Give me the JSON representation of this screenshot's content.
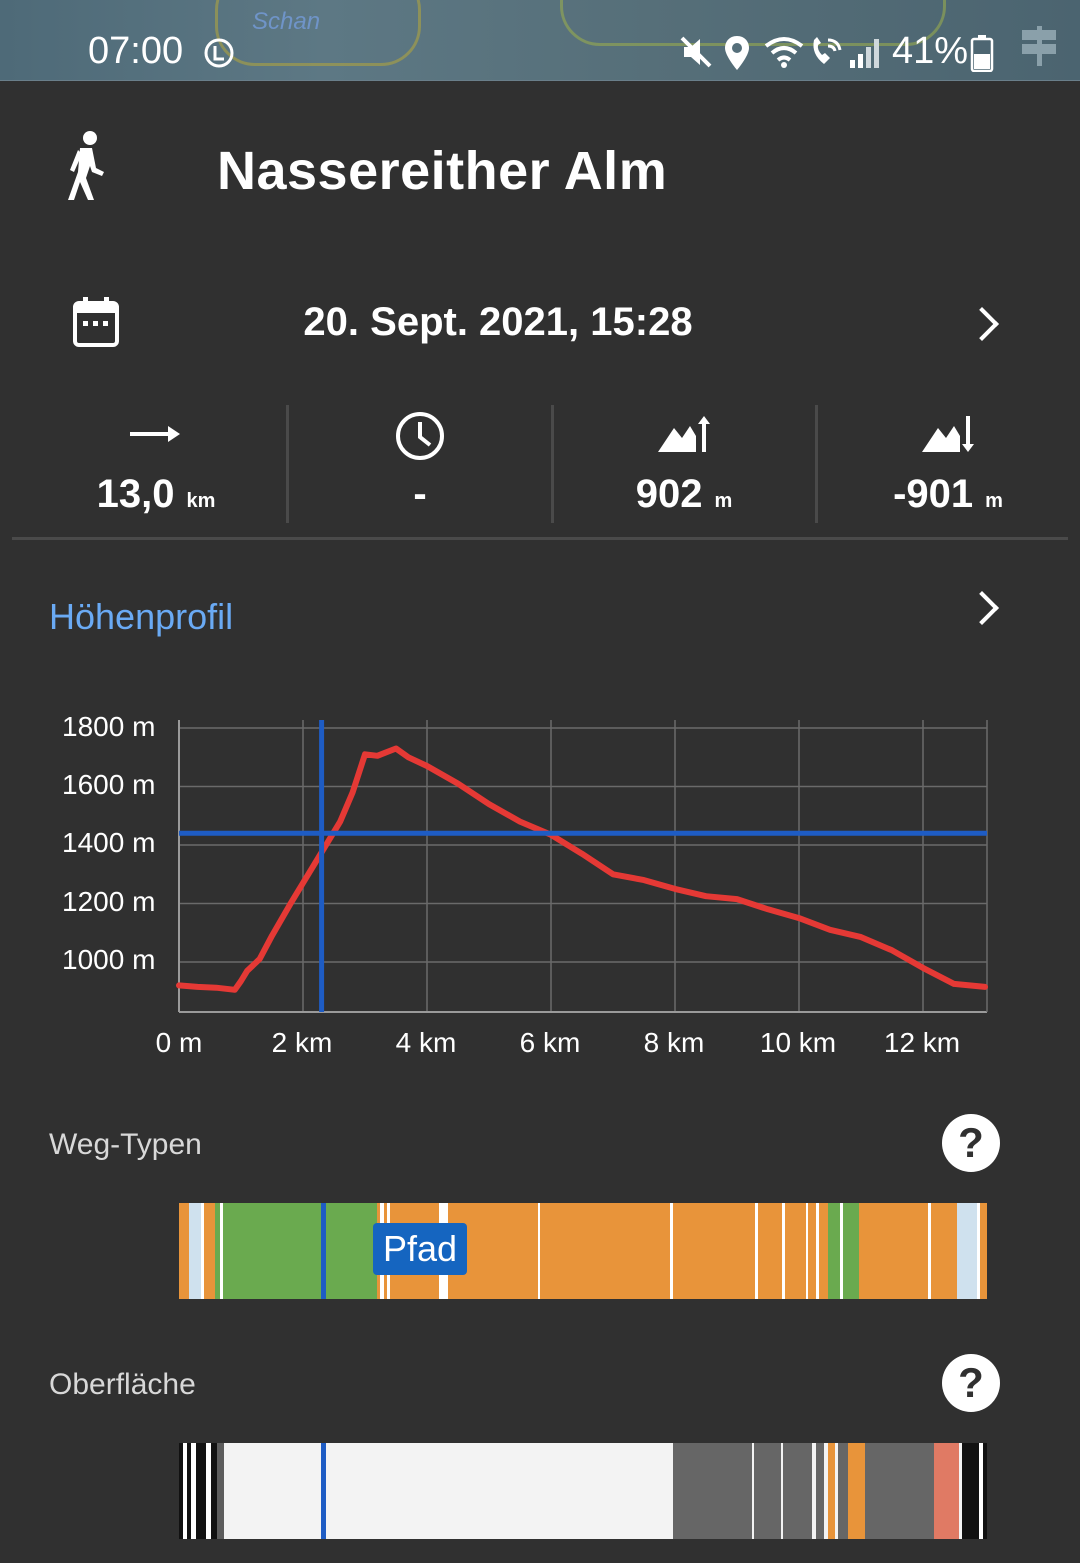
{
  "status_bar": {
    "time": "07:00",
    "battery": "41%",
    "map_fragment": "Schan"
  },
  "header": {
    "activity_icon": "hiker-icon",
    "title": "Nassereither Alm"
  },
  "date_row": {
    "icon": "calendar-icon",
    "text": "20. Sept. 2021, 15:28"
  },
  "stats": [
    {
      "icon": "distance-arrow-icon",
      "value": "13,0",
      "unit": "km"
    },
    {
      "icon": "clock-icon",
      "value": "-",
      "unit": ""
    },
    {
      "icon": "ascent-icon",
      "value": "902",
      "unit": "m"
    },
    {
      "icon": "descent-icon",
      "value": "-901",
      "unit": "m"
    }
  ],
  "elevation": {
    "title": "Höhenprofil",
    "y_ticks": [
      "1800 m",
      "1600 m",
      "1400 m",
      "1200 m",
      "1000 m"
    ],
    "x_ticks": [
      "0 m",
      "2 km",
      "4 km",
      "6 km",
      "8 km",
      "10 km",
      "12 km"
    ]
  },
  "chart_data": {
    "type": "line",
    "xlabel": "",
    "ylabel": "",
    "xlim": [
      0,
      13.0
    ],
    "ylim": [
      850,
      1820
    ],
    "grid": true,
    "series": [
      {
        "color": "#e53935",
        "x": [
          0,
          0.3,
          0.6,
          0.9,
          1.0,
          1.1,
          1.3,
          1.5,
          1.8,
          2.0,
          2.2,
          2.4,
          2.6,
          2.8,
          3.0,
          3.2,
          3.5,
          3.7,
          4.0,
          4.5,
          5.0,
          5.5,
          6.0,
          6.5,
          7.0,
          7.5,
          8.0,
          8.5,
          9.0,
          9.5,
          10.0,
          10.5,
          11.0,
          11.5,
          12.0,
          12.5,
          13.0
        ],
        "y": [
          920,
          915,
          912,
          905,
          935,
          970,
          1010,
          1090,
          1200,
          1270,
          1340,
          1410,
          1480,
          1580,
          1710,
          1705,
          1730,
          1700,
          1670,
          1610,
          1540,
          1480,
          1435,
          1370,
          1300,
          1280,
          1250,
          1225,
          1215,
          1180,
          1150,
          1110,
          1085,
          1040,
          980,
          925,
          915
        ]
      }
    ],
    "cursor": {
      "x": 2.3,
      "y": 1440
    }
  },
  "way_types": {
    "label": "Weg-Typen",
    "tooltip": "Pfad",
    "segments": [
      {
        "c": "#e8943a",
        "w": 1.2
      },
      {
        "c": "#cfe1ee",
        "w": 1.5
      },
      {
        "c": "#ffffff",
        "w": 0.4
      },
      {
        "c": "#e8943a",
        "w": 1.3
      },
      {
        "c": "#6aaa4f",
        "w": 0.6
      },
      {
        "c": "#ffffff",
        "w": 0.4
      },
      {
        "c": "#6aaa4f",
        "w": 19.0
      },
      {
        "c": "#e8943a",
        "w": 0.4
      },
      {
        "c": "#ffffff",
        "w": 0.4
      },
      {
        "c": "#e8943a",
        "w": 0.4
      },
      {
        "c": "#ffffff",
        "w": 0.4
      },
      {
        "c": "#e8943a",
        "w": 6.0
      },
      {
        "c": "#ffffff",
        "w": 1.2
      },
      {
        "c": "#e8943a",
        "w": 11.0
      },
      {
        "c": "#ffffff",
        "w": 0.3
      },
      {
        "c": "#e8943a",
        "w": 16.0
      },
      {
        "c": "#ffffff",
        "w": 0.4
      },
      {
        "c": "#e8943a",
        "w": 10.0
      },
      {
        "c": "#ffffff",
        "w": 0.4
      },
      {
        "c": "#e8943a",
        "w": 3.0
      },
      {
        "c": "#ffffff",
        "w": 0.4
      },
      {
        "c": "#e8943a",
        "w": 2.5
      },
      {
        "c": "#ffffff",
        "w": 0.3
      },
      {
        "c": "#e8943a",
        "w": 1.0
      },
      {
        "c": "#ffffff",
        "w": 0.4
      },
      {
        "c": "#e8943a",
        "w": 1.0
      },
      {
        "c": "#6aaa4f",
        "w": 1.5
      },
      {
        "c": "#ffffff",
        "w": 0.4
      },
      {
        "c": "#6aaa4f",
        "w": 2.0
      },
      {
        "c": "#e8943a",
        "w": 8.5
      },
      {
        "c": "#ffffff",
        "w": 0.4
      },
      {
        "c": "#e8943a",
        "w": 3.2
      },
      {
        "c": "#cfe1ee",
        "w": 2.4
      },
      {
        "c": "#ffffff",
        "w": 0.4
      },
      {
        "c": "#e8943a",
        "w": 0.8
      }
    ]
  },
  "surface": {
    "label": "Oberfläche",
    "segments": [
      {
        "c": "#111111",
        "w": 0.5
      },
      {
        "c": "#ffffff",
        "w": 0.5
      },
      {
        "c": "#111111",
        "w": 0.5
      },
      {
        "c": "#ffffff",
        "w": 0.5
      },
      {
        "c": "#111111",
        "w": 1.2
      },
      {
        "c": "#ffffff",
        "w": 0.6
      },
      {
        "c": "#111111",
        "w": 0.8
      },
      {
        "c": "#5c5c5c",
        "w": 0.8
      },
      {
        "c": "#f3f3f3",
        "w": 54.0
      },
      {
        "c": "#666666",
        "w": 9.5
      },
      {
        "c": "#f3f3f3",
        "w": 0.3
      },
      {
        "c": "#666666",
        "w": 3.2
      },
      {
        "c": "#f3f3f3",
        "w": 0.3
      },
      {
        "c": "#666666",
        "w": 3.5
      },
      {
        "c": "#f3f3f3",
        "w": 0.4
      },
      {
        "c": "#666666",
        "w": 1.0
      },
      {
        "c": "#f3f3f3",
        "w": 0.5
      },
      {
        "c": "#e8943a",
        "w": 0.8
      },
      {
        "c": "#f3f3f3",
        "w": 0.4
      },
      {
        "c": "#666666",
        "w": 1.2
      },
      {
        "c": "#e8943a",
        "w": 2.0
      },
      {
        "c": "#666666",
        "w": 8.3
      },
      {
        "c": "#e07a64",
        "w": 3.0
      },
      {
        "c": "#f3f3f3",
        "w": 0.4
      },
      {
        "c": "#111111",
        "w": 2.0
      },
      {
        "c": "#ffffff",
        "w": 0.5
      },
      {
        "c": "#111111",
        "w": 0.5
      }
    ]
  },
  "colors": {
    "background": "#303030",
    "accent_blue": "#6aaaf4",
    "cursor_blue": "#1e5cc4",
    "profile_red": "#e53935",
    "tooltip_blue": "#1565c0"
  }
}
